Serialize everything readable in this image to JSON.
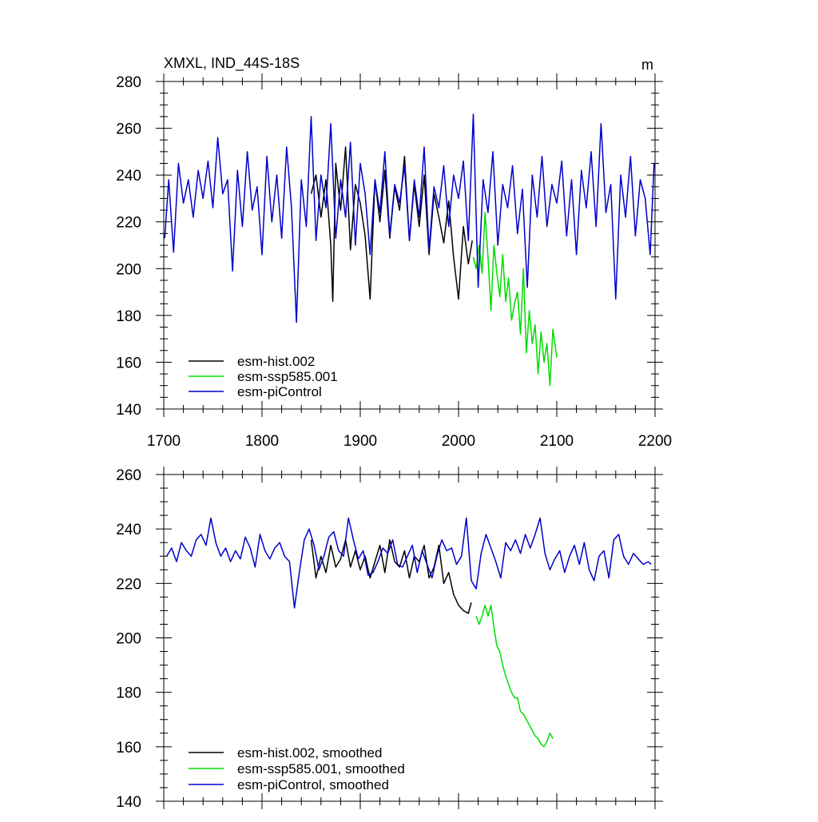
{
  "chart_data": [
    {
      "type": "line",
      "title": "XMXL, IND_44S-18S",
      "units": "m",
      "xlim": [
        1700,
        2200
      ],
      "ylim": [
        140,
        280
      ],
      "x_ticks": [
        "1700",
        "1800",
        "1900",
        "2000",
        "2100",
        "2200"
      ],
      "y_ticks": [
        "140",
        "160",
        "180",
        "200",
        "220",
        "240",
        "260",
        "280"
      ],
      "legend_position": "bottom-left",
      "series": [
        {
          "name": "esm-hist.002",
          "color": "#000000",
          "x": [
            1850,
            1855,
            1860,
            1865,
            1870,
            1872,
            1875,
            1880,
            1885,
            1890,
            1895,
            1900,
            1905,
            1910,
            1915,
            1920,
            1925,
            1930,
            1935,
            1940,
            1945,
            1950,
            1955,
            1960,
            1965,
            1970,
            1975,
            1980,
            1985,
            1990,
            1995,
            2000,
            2005,
            2010,
            2014
          ],
          "y": [
            232,
            240,
            222,
            238,
            210,
            186,
            245,
            225,
            252,
            208,
            236,
            228,
            214,
            187,
            238,
            220,
            242,
            213,
            235,
            225,
            248,
            212,
            236,
            218,
            240,
            206,
            232,
            222,
            211,
            229,
            205,
            187,
            218,
            202,
            212
          ]
        },
        {
          "name": "esm-ssp585.001",
          "color": "#00dd00",
          "x": [
            2015,
            2018,
            2021,
            2024,
            2027,
            2030,
            2033,
            2036,
            2039,
            2042,
            2045,
            2048,
            2051,
            2054,
            2057,
            2060,
            2063,
            2066,
            2069,
            2072,
            2075,
            2078,
            2081,
            2084,
            2087,
            2090,
            2093,
            2096,
            2100
          ],
          "y": [
            205,
            200,
            210,
            198,
            224,
            205,
            182,
            210,
            198,
            188,
            206,
            186,
            196,
            178,
            185,
            190,
            172,
            200,
            164,
            182,
            168,
            176,
            155,
            173,
            160,
            168,
            150,
            174,
            162
          ]
        },
        {
          "name": "esm-piControl",
          "color": "#0000cc",
          "x": [
            1701,
            1705,
            1710,
            1715,
            1720,
            1725,
            1730,
            1735,
            1740,
            1745,
            1750,
            1755,
            1760,
            1765,
            1770,
            1775,
            1780,
            1785,
            1790,
            1795,
            1800,
            1805,
            1810,
            1815,
            1820,
            1825,
            1830,
            1835,
            1840,
            1845,
            1850,
            1855,
            1860,
            1865,
            1870,
            1875,
            1880,
            1885,
            1890,
            1895,
            1900,
            1905,
            1910,
            1915,
            1920,
            1925,
            1930,
            1935,
            1940,
            1945,
            1950,
            1955,
            1960,
            1965,
            1970,
            1975,
            1980,
            1985,
            1990,
            1995,
            2000,
            2005,
            2010,
            2015,
            2020,
            2025,
            2030,
            2035,
            2040,
            2045,
            2050,
            2055,
            2060,
            2065,
            2070,
            2075,
            2080,
            2085,
            2090,
            2095,
            2100,
            2105,
            2110,
            2115,
            2120,
            2125,
            2130,
            2135,
            2140,
            2145,
            2150,
            2155,
            2160,
            2165,
            2170,
            2175,
            2180,
            2185,
            2190,
            2195,
            2199
          ],
          "y": [
            213,
            238,
            207,
            245,
            228,
            238,
            222,
            242,
            230,
            246,
            226,
            256,
            232,
            238,
            199,
            242,
            218,
            250,
            225,
            235,
            206,
            248,
            220,
            240,
            213,
            252,
            226,
            177,
            238,
            218,
            265,
            212,
            240,
            226,
            262,
            213,
            238,
            222,
            254,
            210,
            245,
            232,
            206,
            238,
            224,
            250,
            214,
            236,
            228,
            244,
            212,
            238,
            222,
            252,
            208,
            235,
            226,
            244,
            218,
            240,
            230,
            246,
            212,
            266,
            192,
            238,
            224,
            250,
            210,
            236,
            226,
            244,
            215,
            234,
            192,
            240,
            222,
            248,
            218,
            236,
            228,
            246,
            214,
            238,
            206,
            242,
            226,
            250,
            218,
            262,
            224,
            236,
            187,
            240,
            222,
            248,
            214,
            238,
            230,
            206,
            245
          ]
        }
      ]
    },
    {
      "type": "line",
      "xlim": [
        1700,
        2200
      ],
      "ylim": [
        140,
        260
      ],
      "y_ticks": [
        "140",
        "160",
        "180",
        "200",
        "220",
        "240",
        "260"
      ],
      "legend_position": "bottom-left",
      "series": [
        {
          "name": "esm-hist.002, smoothed",
          "color": "#000000",
          "x": [
            1850,
            1855,
            1860,
            1865,
            1870,
            1875,
            1880,
            1885,
            1890,
            1895,
            1900,
            1905,
            1910,
            1915,
            1920,
            1925,
            1930,
            1935,
            1940,
            1945,
            1950,
            1955,
            1960,
            1965,
            1970,
            1975,
            1980,
            1985,
            1990,
            1995,
            2000,
            2005,
            2010,
            2013
          ],
          "y": [
            236,
            222,
            230,
            224,
            234,
            226,
            229,
            236,
            226,
            232,
            225,
            230,
            222,
            228,
            234,
            224,
            236,
            228,
            226,
            232,
            222,
            230,
            228,
            234,
            222,
            226,
            234,
            220,
            224,
            216,
            212,
            210,
            209,
            213
          ]
        },
        {
          "name": "esm-ssp585.001, smoothed",
          "color": "#00dd00",
          "x": [
            2018,
            2021,
            2024,
            2027,
            2030,
            2033,
            2036,
            2039,
            2042,
            2045,
            2048,
            2051,
            2054,
            2057,
            2060,
            2063,
            2066,
            2069,
            2072,
            2075,
            2078,
            2081,
            2084,
            2087,
            2090,
            2093,
            2096
          ],
          "y": [
            208,
            205,
            208,
            212,
            208,
            212,
            204,
            197,
            195,
            190,
            186,
            183,
            180,
            178,
            178,
            173,
            172,
            170,
            168,
            166,
            164,
            163,
            161,
            160,
            162,
            165,
            163
          ]
        },
        {
          "name": "esm-piControl, smoothed",
          "color": "#0000cc",
          "x": [
            1703,
            1708,
            1713,
            1718,
            1723,
            1728,
            1733,
            1738,
            1743,
            1748,
            1753,
            1758,
            1763,
            1768,
            1773,
            1778,
            1783,
            1788,
            1793,
            1798,
            1803,
            1808,
            1813,
            1818,
            1823,
            1828,
            1833,
            1838,
            1843,
            1848,
            1853,
            1858,
            1863,
            1868,
            1873,
            1878,
            1883,
            1888,
            1893,
            1898,
            1903,
            1908,
            1913,
            1918,
            1923,
            1928,
            1933,
            1938,
            1943,
            1948,
            1953,
            1958,
            1963,
            1968,
            1973,
            1978,
            1983,
            1988,
            1993,
            1998,
            2003,
            2008,
            2013,
            2018,
            2023,
            2028,
            2033,
            2038,
            2043,
            2048,
            2053,
            2058,
            2063,
            2068,
            2073,
            2078,
            2083,
            2088,
            2093,
            2098,
            2103,
            2108,
            2113,
            2118,
            2123,
            2128,
            2133,
            2138,
            2143,
            2148,
            2153,
            2158,
            2163,
            2168,
            2173,
            2178,
            2183,
            2188,
            2193,
            2196
          ],
          "y": [
            230,
            233,
            228,
            235,
            232,
            230,
            236,
            238,
            234,
            244,
            235,
            230,
            233,
            228,
            232,
            229,
            237,
            233,
            226,
            238,
            232,
            229,
            233,
            235,
            230,
            228,
            211,
            224,
            236,
            240,
            234,
            225,
            230,
            237,
            239,
            232,
            230,
            244,
            236,
            229,
            232,
            223,
            224,
            228,
            233,
            231,
            236,
            227,
            226,
            230,
            234,
            224,
            232,
            227,
            222,
            230,
            236,
            232,
            233,
            227,
            230,
            244,
            221,
            218,
            231,
            238,
            233,
            228,
            222,
            235,
            232,
            236,
            231,
            238,
            233,
            238,
            244,
            231,
            225,
            229,
            232,
            224,
            230,
            234,
            227,
            235,
            225,
            221,
            230,
            232,
            222,
            236,
            238,
            230,
            227,
            231,
            229,
            227,
            228,
            227
          ]
        }
      ]
    }
  ]
}
